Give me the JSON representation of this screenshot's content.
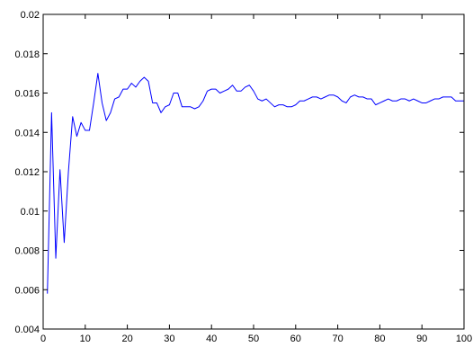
{
  "chart_data": {
    "type": "line",
    "title": "",
    "xlabel": "",
    "ylabel": "",
    "xlim": [
      0,
      100
    ],
    "ylim": [
      0.004,
      0.02
    ],
    "grid": false,
    "legend": "none",
    "x_ticks": [
      "0",
      "10",
      "20",
      "30",
      "40",
      "50",
      "60",
      "70",
      "80",
      "90",
      "100"
    ],
    "y_ticks": [
      "0.004",
      "0.006",
      "0.008",
      "0.01",
      "0.012",
      "0.014",
      "0.016",
      "0.018",
      "0.02"
    ],
    "series": [
      {
        "color": "#0000ff",
        "x": [
          1,
          2,
          3,
          4,
          5,
          6,
          7,
          8,
          9,
          10,
          11,
          12,
          13,
          14,
          15,
          16,
          17,
          18,
          19,
          20,
          21,
          22,
          23,
          24,
          25,
          26,
          27,
          28,
          29,
          30,
          31,
          32,
          33,
          34,
          35,
          36,
          37,
          38,
          39,
          40,
          41,
          42,
          43,
          44,
          45,
          46,
          47,
          48,
          49,
          50,
          51,
          52,
          53,
          54,
          55,
          56,
          57,
          58,
          59,
          60,
          61,
          62,
          63,
          64,
          65,
          66,
          67,
          68,
          69,
          70,
          71,
          72,
          73,
          74,
          75,
          76,
          77,
          78,
          79,
          80,
          81,
          82,
          83,
          84,
          85,
          86,
          87,
          88,
          89,
          90,
          91,
          92,
          93,
          94,
          95,
          96,
          97,
          98,
          99,
          100
        ],
        "values": [
          0.0058,
          0.015,
          0.0076,
          0.0121,
          0.0084,
          0.012,
          0.0148,
          0.0138,
          0.0145,
          0.0141,
          0.0141,
          0.0155,
          0.017,
          0.0155,
          0.0146,
          0.015,
          0.0157,
          0.0158,
          0.0162,
          0.0162,
          0.0165,
          0.0163,
          0.0166,
          0.0168,
          0.0166,
          0.0155,
          0.0155,
          0.015,
          0.0153,
          0.0154,
          0.016,
          0.016,
          0.0153,
          0.0153,
          0.0153,
          0.0152,
          0.0153,
          0.0156,
          0.0161,
          0.0162,
          0.0162,
          0.016,
          0.0161,
          0.0162,
          0.0164,
          0.0161,
          0.0161,
          0.0163,
          0.0164,
          0.0161,
          0.0157,
          0.0156,
          0.0157,
          0.0155,
          0.0153,
          0.0154,
          0.0154,
          0.0153,
          0.0153,
          0.0154,
          0.0156,
          0.0156,
          0.0157,
          0.0158,
          0.0158,
          0.0157,
          0.0158,
          0.0159,
          0.0159,
          0.0158,
          0.0156,
          0.0155,
          0.0158,
          0.0159,
          0.0158,
          0.0158,
          0.0157,
          0.0157,
          0.0154,
          0.0155,
          0.0156,
          0.0157,
          0.0156,
          0.0156,
          0.0157,
          0.0157,
          0.0156,
          0.0157,
          0.0156,
          0.0155,
          0.0155,
          0.0156,
          0.0157,
          0.0157,
          0.0158,
          0.0158,
          0.0158,
          0.0156,
          0.0156,
          0.0156
        ]
      }
    ]
  }
}
